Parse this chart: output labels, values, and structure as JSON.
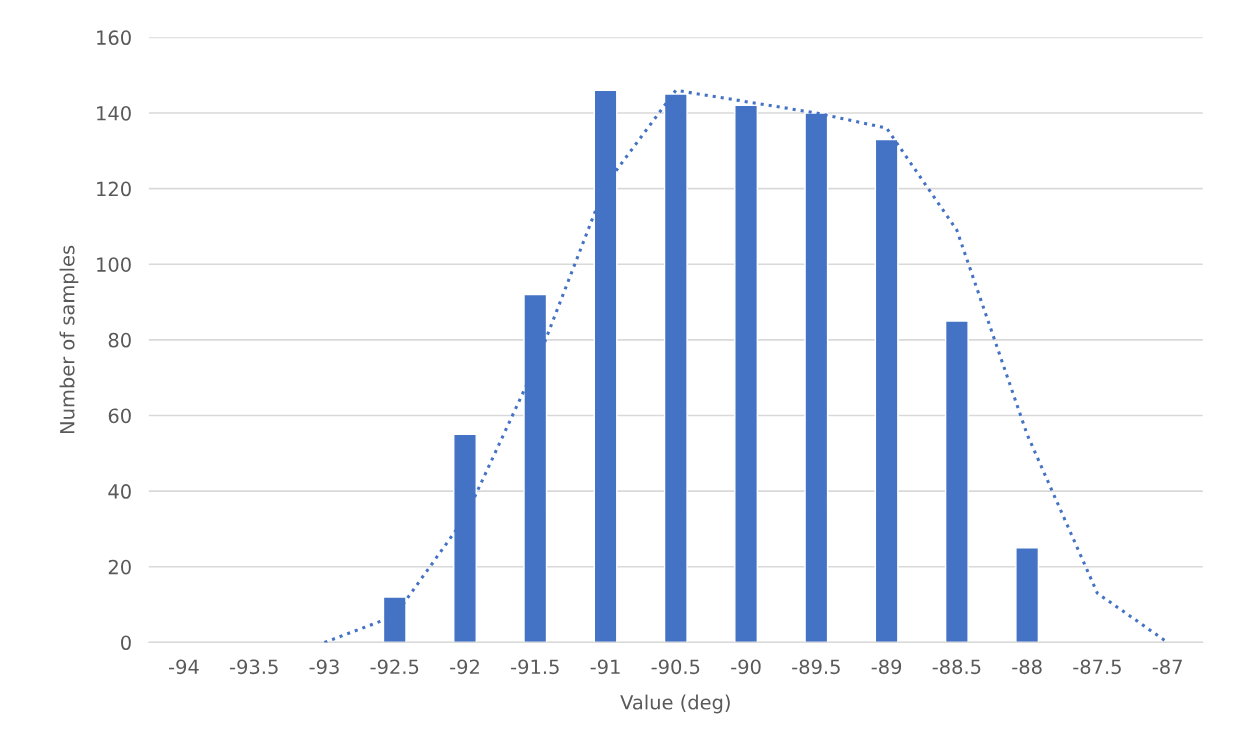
{
  "chart_data": {
    "type": "bar",
    "xlabel": "Value (deg)",
    "ylabel": "Number of samples",
    "categories": [
      "-94",
      "-93.5",
      "-93",
      "-92.5",
      "-92",
      "-91.5",
      "-91",
      "-90.5",
      "-90",
      "-89.5",
      "-89",
      "-88.5",
      "-88",
      "-87.5",
      "-87"
    ],
    "series": [
      {
        "color": "#4472c4",
        "values": [
          null,
          null,
          null,
          12,
          55,
          92,
          146,
          145,
          142,
          140,
          133,
          85,
          25,
          null,
          null
        ]
      },
      {
        "type": "line",
        "color": "#4472c4",
        "line_style": "dotted",
        "values": [
          null,
          null,
          0,
          7,
          33,
          73,
          121,
          146,
          143,
          140,
          136,
          109,
          55,
          13,
          0
        ]
      }
    ],
    "ylim": [
      0,
      160
    ],
    "yticks": [
      0,
      20,
      40,
      60,
      80,
      100,
      120,
      140,
      160
    ],
    "grid": "y",
    "legend": false
  }
}
